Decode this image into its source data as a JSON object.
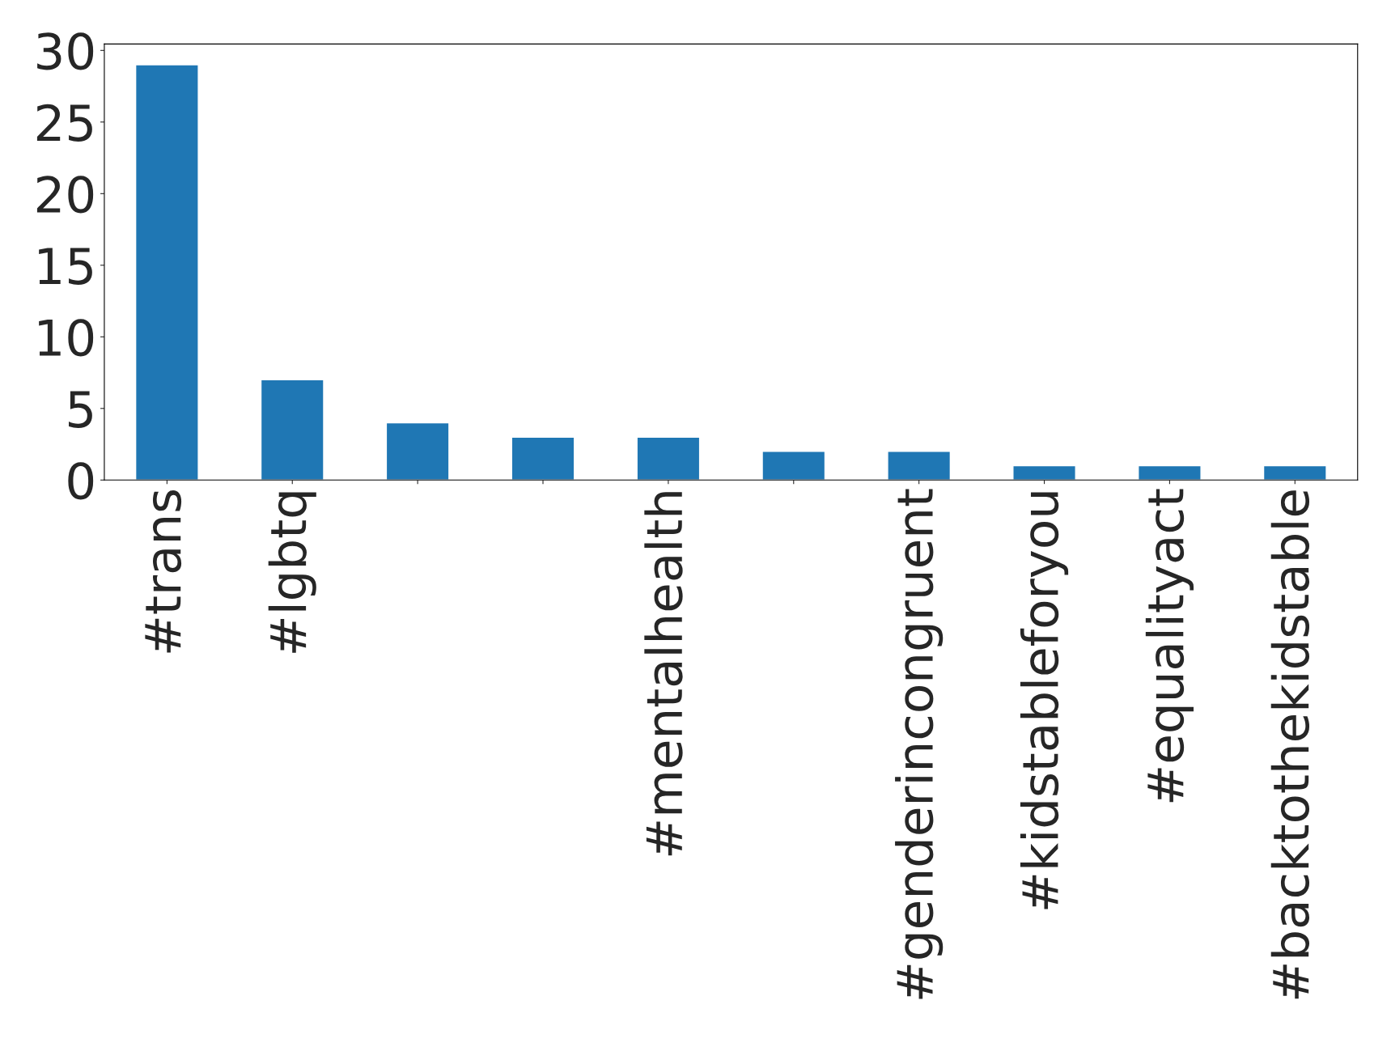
{
  "chart_data": {
    "type": "bar",
    "categories": [
      "#trans",
      "#lgbtq",
      null,
      null,
      "#mentalhealth",
      null,
      "#genderincongruent",
      "#kidstableforyou",
      "#equalityact",
      "#backtothekidstable"
    ],
    "values": [
      29,
      7,
      4,
      3,
      3,
      2,
      2,
      1,
      1,
      1
    ],
    "color": "#1f77b4",
    "ylim": [
      0,
      30.45
    ],
    "yticks": [
      0,
      5,
      10,
      15,
      20,
      25,
      30
    ],
    "grid": false,
    "legend": false
  }
}
